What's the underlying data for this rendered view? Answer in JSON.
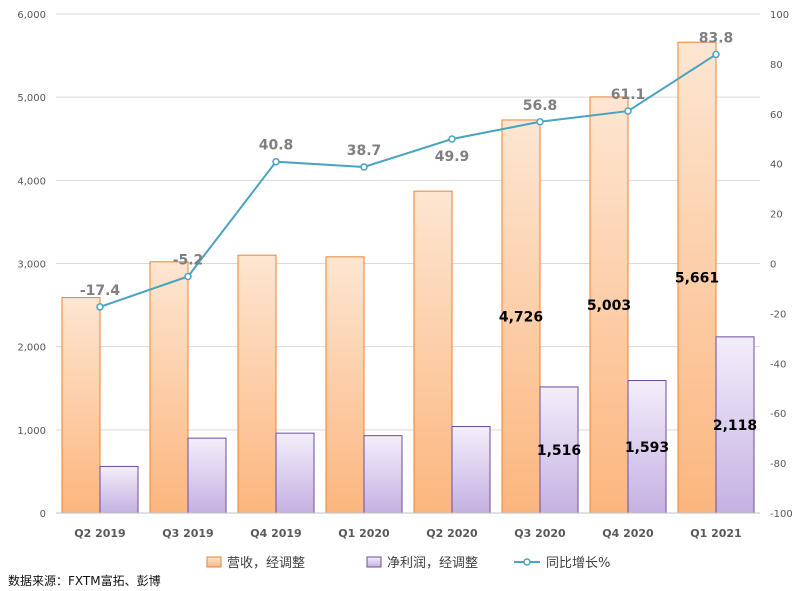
{
  "chart_data": {
    "type": "bar",
    "categories": [
      "Q2 2019",
      "Q3 2019",
      "Q4 2019",
      "Q1 2020",
      "Q2 2020",
      "Q3 2020",
      "Q4 2020",
      "Q1 2021"
    ],
    "series": [
      {
        "name": "营收，经调整",
        "type": "bar",
        "axis": "left",
        "values": [
          2590,
          3020,
          3100,
          3080,
          3870,
          4726,
          5003,
          5661
        ],
        "data_labels": [
          "",
          "",
          "",
          "",
          "",
          "4,726",
          "5,003",
          "5,661"
        ]
      },
      {
        "name": "净利润，经调整",
        "type": "bar",
        "axis": "left",
        "values": [
          560,
          900,
          960,
          930,
          1040,
          1516,
          1593,
          2118
        ],
        "data_labels": [
          "",
          "",
          "",
          "",
          "",
          "1,516",
          "1,593",
          "2,118"
        ]
      },
      {
        "name": "同比增长%",
        "type": "line",
        "axis": "right",
        "values": [
          -17.4,
          -5.2,
          40.8,
          38.7,
          49.9,
          56.8,
          61.1,
          83.8
        ],
        "data_labels": [
          "-17.4",
          "-5.2",
          "40.8",
          "38.7",
          "49.9",
          "56.8",
          "61.1",
          "83.8"
        ]
      }
    ],
    "ylim_left": [
      0,
      6000
    ],
    "yticks_left": [
      "0",
      "1,000",
      "2,000",
      "3,000",
      "4,000",
      "5,000",
      "6,000"
    ],
    "ylim_right": [
      -100,
      100
    ],
    "yticks_right": [
      "-100",
      "-80",
      "-60",
      "-40",
      "-20",
      "0",
      "20",
      "40",
      "60",
      "80",
      "100"
    ],
    "grid": true,
    "legend_position": "bottom",
    "source": "数据来源：FXTM富拓、彭博",
    "colors": {
      "revenue_fill_top": "#fde6d2",
      "revenue_fill_bottom": "#fbb67f",
      "revenue_stroke": "#e8833a",
      "profit_fill_top": "#f3eefa",
      "profit_fill_bottom": "#c5b1e2",
      "profit_stroke": "#6b4e9e",
      "line": "#4aa3c0",
      "line_label": "#808080",
      "grid": "#d9d9d9"
    }
  }
}
